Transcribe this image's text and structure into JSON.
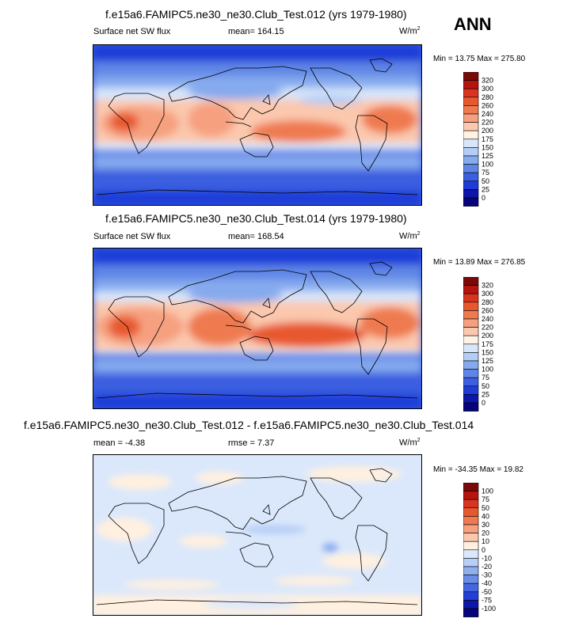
{
  "season": "ANN",
  "units_base": "W/m",
  "units_exp": "2",
  "panels": [
    {
      "title": "f.e15a6.FAMIPC5.ne30_ne30.Club_Test.012 (yrs 1979-1980)",
      "left_label": "Surface net SW flux",
      "mid_label": "mean= 164.15",
      "units": "W/m",
      "units_exp": "2",
      "minmax": "Min =  13.75 Max = 275.80",
      "levels": [
        "320",
        "300",
        "280",
        "260",
        "240",
        "220",
        "200",
        "175",
        "150",
        "125",
        "100",
        "75",
        "50",
        "25",
        "0"
      ],
      "colors": [
        "#7a0a0a",
        "#b5150e",
        "#d9341f",
        "#e8582f",
        "#ef7a4f",
        "#f6a07f",
        "#fbc8ae",
        "#fff3e6",
        "#d7e6fb",
        "#b3cdf6",
        "#86aaee",
        "#5f86e6",
        "#3a5fe0",
        "#1d3cd8",
        "#0d16a8",
        "#06047a"
      ]
    },
    {
      "title": "f.e15a6.FAMIPC5.ne30_ne30.Club_Test.014 (yrs 1979-1980)",
      "left_label": "Surface net SW flux",
      "mid_label": "mean= 168.54",
      "units": "W/m",
      "units_exp": "2",
      "minmax": "Min =  13.89 Max = 276.85",
      "levels": [
        "320",
        "300",
        "280",
        "260",
        "240",
        "220",
        "200",
        "175",
        "150",
        "125",
        "100",
        "75",
        "50",
        "25",
        "0"
      ],
      "colors": [
        "#7a0a0a",
        "#b5150e",
        "#d9341f",
        "#e8582f",
        "#ef7a4f",
        "#f6a07f",
        "#fbc8ae",
        "#fff3e6",
        "#d7e6fb",
        "#b3cdf6",
        "#86aaee",
        "#5f86e6",
        "#3a5fe0",
        "#1d3cd8",
        "#0d16a8",
        "#06047a"
      ]
    },
    {
      "title": "f.e15a6.FAMIPC5.ne30_ne30.Club_Test.012 - f.e15a6.FAMIPC5.ne30_ne30.Club_Test.014",
      "left_label": "mean =  -4.38",
      "mid_label": "rmse =   7.37",
      "units": "W/m",
      "units_exp": "2",
      "minmax": "Min = -34.35 Max =  19.82",
      "levels": [
        "100",
        "75",
        "50",
        "40",
        "30",
        "20",
        "10",
        "0",
        "-10",
        "-20",
        "-30",
        "-40",
        "-50",
        "-75",
        "-100"
      ],
      "colors": [
        "#7a0a0a",
        "#b5150e",
        "#d9341f",
        "#e8582f",
        "#ef7a4f",
        "#f6a07f",
        "#fbc8ae",
        "#fff0e0",
        "#dbe8fb",
        "#b7cff6",
        "#8eaff0",
        "#6a8de8",
        "#4467e0",
        "#2240d6",
        "#0e18a8",
        "#07057c"
      ]
    }
  ]
}
